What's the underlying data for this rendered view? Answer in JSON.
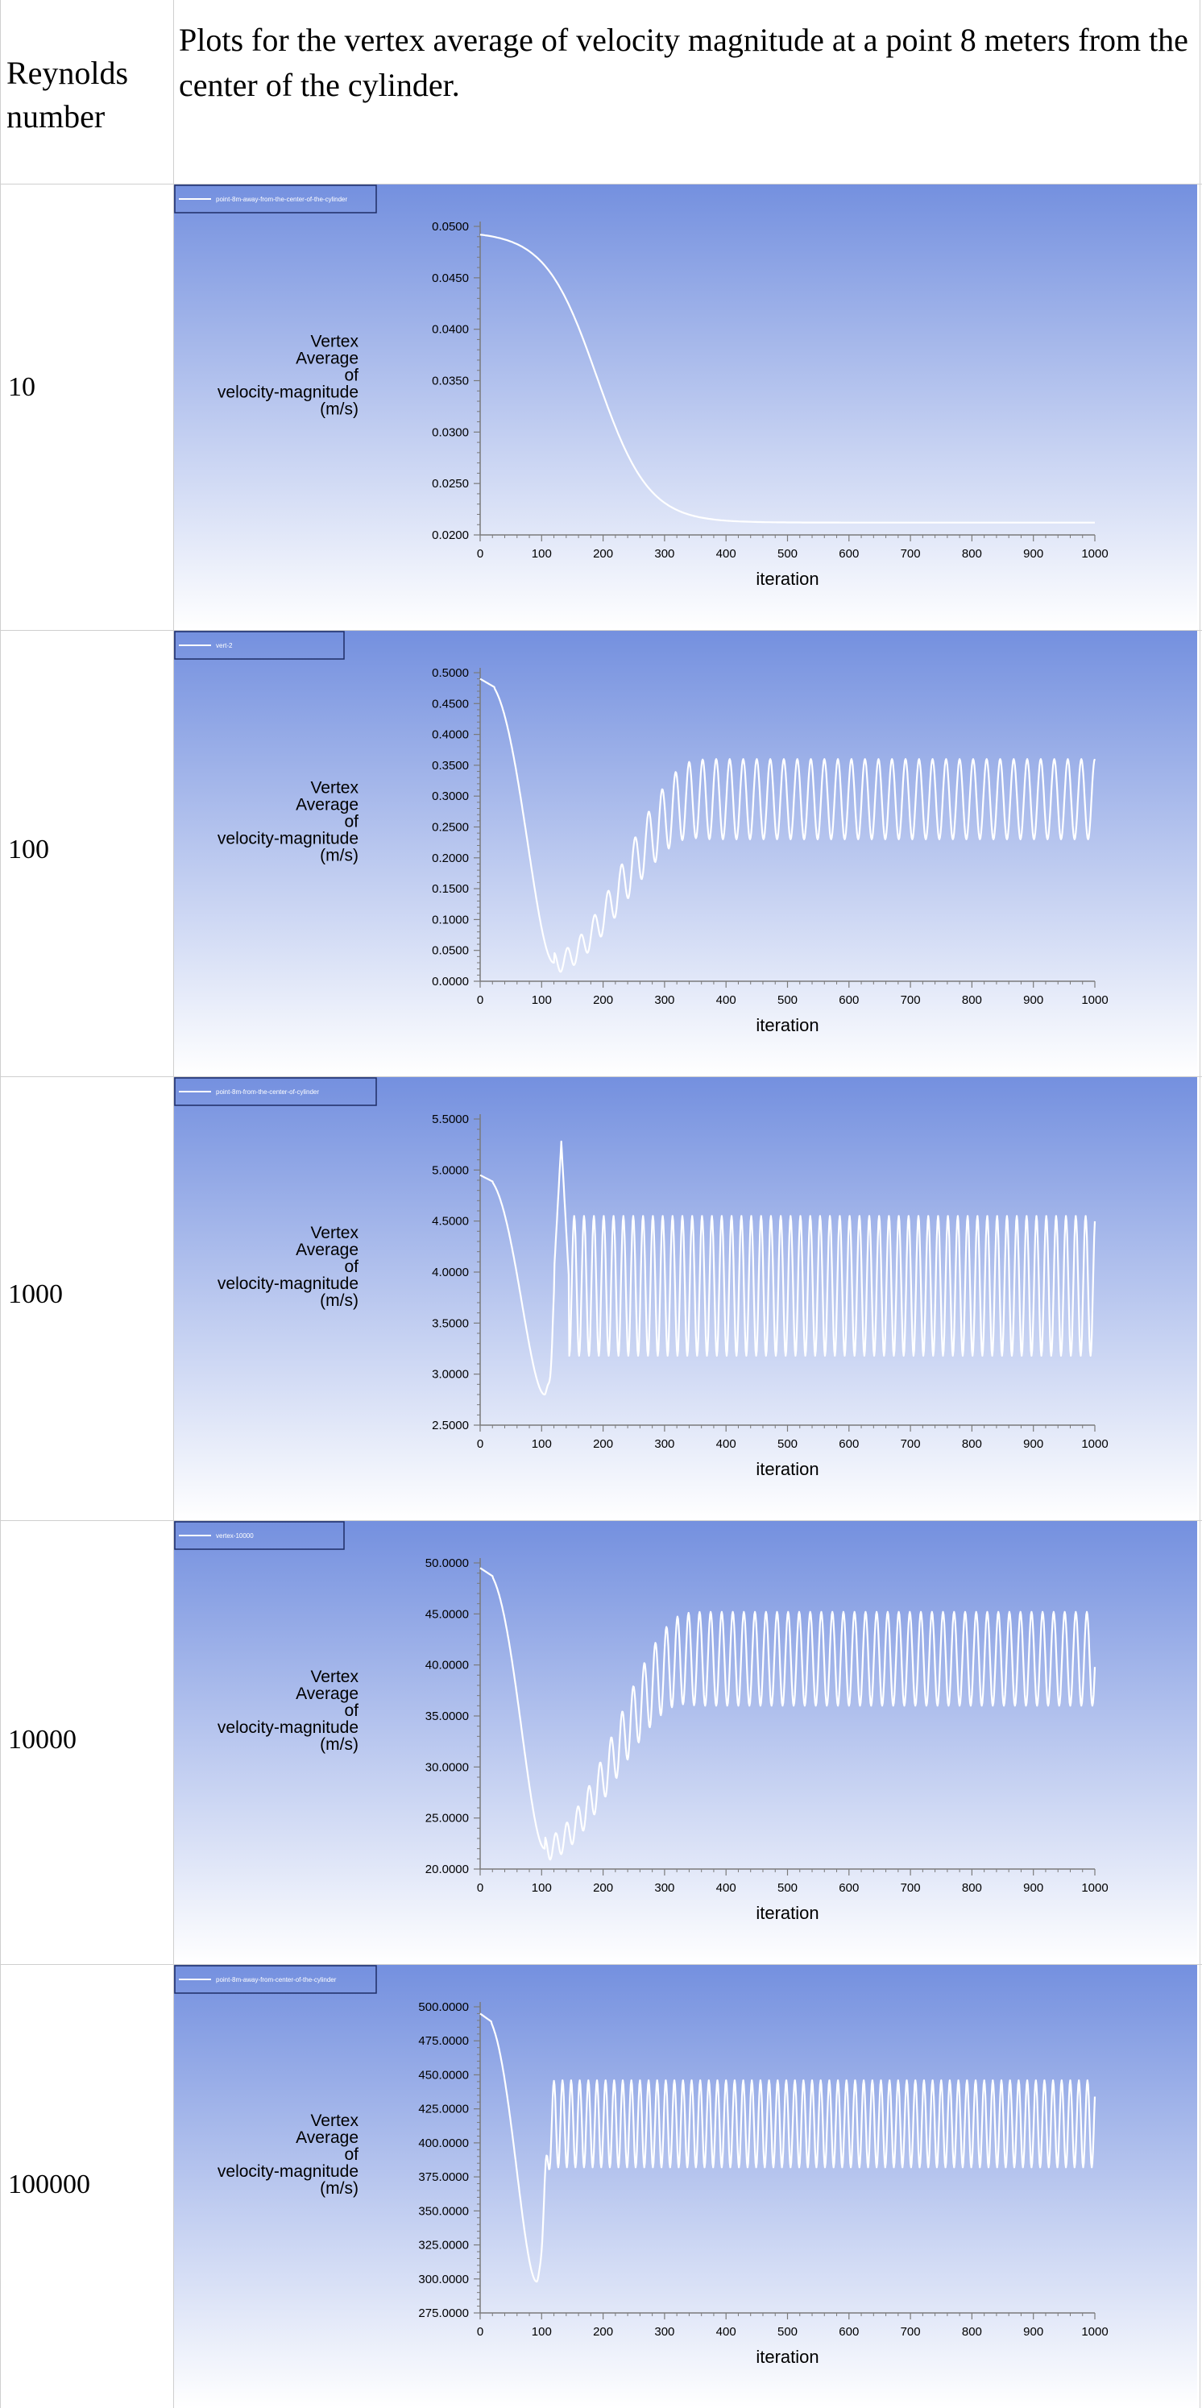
{
  "header": {
    "left": "Reynolds number",
    "right": "Plots for the vertex average of velocity magnitude at a point 8 meters from the center of the cylinder."
  },
  "colors": {
    "gradient_top": "#7490df",
    "gradient_bottom": "#ffffff",
    "curve": "#ffffff",
    "axis": "#7a7a7a",
    "text": "#000000"
  },
  "rows": [
    {
      "reynolds": "10"
    },
    {
      "reynolds": "100"
    },
    {
      "reynolds": "1000"
    },
    {
      "reynolds": "10000"
    },
    {
      "reynolds": "100000"
    }
  ],
  "chart_data": [
    {
      "type": "line",
      "legend": "point-8m-away-from-the-center-of-the-cylinder",
      "legend_position": "top-left",
      "xlabel": "iteration",
      "ylabel": [
        "Vertex",
        "Average",
        "of",
        "velocity-magnitude",
        "(m/s)"
      ],
      "xlim": [
        0,
        1000
      ],
      "ylim": [
        0.02,
        0.05
      ],
      "xticks": [
        "0",
        "100",
        "200",
        "300",
        "400",
        "500",
        "600",
        "700",
        "800",
        "900",
        "1000"
      ],
      "yticks": [
        "0.0200",
        "0.0250",
        "0.0300",
        "0.0350",
        "0.0400",
        "0.0450",
        "0.0500"
      ],
      "series": [
        {
          "kind": "decay",
          "start": 0.0495,
          "plateau": 0.0212,
          "midpoint": 190,
          "steepness": 42
        }
      ]
    },
    {
      "type": "line",
      "legend": "vert-2",
      "legend_position": "top-left",
      "xlabel": "iteration",
      "ylabel": [
        "Vertex",
        "Average",
        "of",
        "velocity-magnitude",
        "(m/s)"
      ],
      "xlim": [
        0,
        1000
      ],
      "ylim": [
        0,
        0.5
      ],
      "xticks": [
        "0",
        "100",
        "200",
        "300",
        "400",
        "500",
        "600",
        "700",
        "800",
        "900",
        "1000"
      ],
      "yticks": [
        "0.0000",
        "0.0500",
        "0.1000",
        "0.1500",
        "0.2000",
        "0.2500",
        "0.3000",
        "0.3500",
        "0.4000",
        "0.4500",
        "0.5000"
      ],
      "series": [
        {
          "kind": "oscillating",
          "start": 0.49,
          "min_x": 120,
          "min_y": 0.03,
          "growth": true,
          "final_high": 0.36,
          "final_low": 0.23,
          "period": 22
        }
      ]
    },
    {
      "type": "line",
      "legend": "point-8m-from-the-center-of-cylinder",
      "legend_position": "top-left",
      "xlabel": "iteration",
      "ylabel": [
        "Vertex",
        "Average",
        "of",
        "velocity-magnitude",
        "(m/s)"
      ],
      "xlim": [
        0,
        1000
      ],
      "ylim": [
        2.5,
        5.5
      ],
      "xticks": [
        "0",
        "100",
        "200",
        "300",
        "400",
        "500",
        "600",
        "700",
        "800",
        "900",
        "1000"
      ],
      "yticks": [
        "2.5000",
        "3.0000",
        "3.5000",
        "4.0000",
        "4.5000",
        "5.0000",
        "5.5000"
      ],
      "series": [
        {
          "kind": "oscillating",
          "start": 4.95,
          "min_x": 105,
          "min_y": 2.8,
          "growth": false,
          "final_high": 4.55,
          "final_low": 3.18,
          "period": 16,
          "spike": 5.28
        }
      ]
    },
    {
      "type": "line",
      "legend": "vertex-10000",
      "legend_position": "top-left",
      "xlabel": "iteration",
      "ylabel": [
        "Vertex",
        "Average",
        "of",
        "velocity-magnitude",
        "(m/s)"
      ],
      "xlim": [
        0,
        1000
      ],
      "ylim": [
        20,
        50
      ],
      "xticks": [
        "0",
        "100",
        "200",
        "300",
        "400",
        "500",
        "600",
        "700",
        "800",
        "900",
        "1000"
      ],
      "yticks": [
        "20.0000",
        "25.0000",
        "30.0000",
        "35.0000",
        "40.0000",
        "45.0000",
        "50.0000"
      ],
      "series": [
        {
          "kind": "oscillating",
          "start": 49.5,
          "min_x": 105,
          "min_y": 22.0,
          "growth": true,
          "final_high": 45.2,
          "final_low": 36.0,
          "period": 18
        }
      ]
    },
    {
      "type": "line",
      "legend": "point-8m-away-from-center-of-the-cylinder",
      "legend_position": "top-left",
      "xlabel": "iteration",
      "ylabel": [
        "Vertex",
        "Average",
        "of",
        "velocity-magnitude",
        "(m/s)"
      ],
      "xlim": [
        0,
        1000
      ],
      "ylim": [
        275,
        500
      ],
      "xticks": [
        "0",
        "100",
        "200",
        "300",
        "400",
        "500",
        "600",
        "700",
        "800",
        "900",
        "1000"
      ],
      "yticks": [
        "275.0000",
        "300.0000",
        "325.0000",
        "350.0000",
        "375.0000",
        "400.0000",
        "425.0000",
        "450.0000",
        "475.0000",
        "500.0000"
      ],
      "series": [
        {
          "kind": "oscillating",
          "start": 495,
          "min_x": 92,
          "min_y": 298,
          "growth": false,
          "final_high": 446,
          "final_low": 382,
          "period": 14
        }
      ]
    }
  ]
}
